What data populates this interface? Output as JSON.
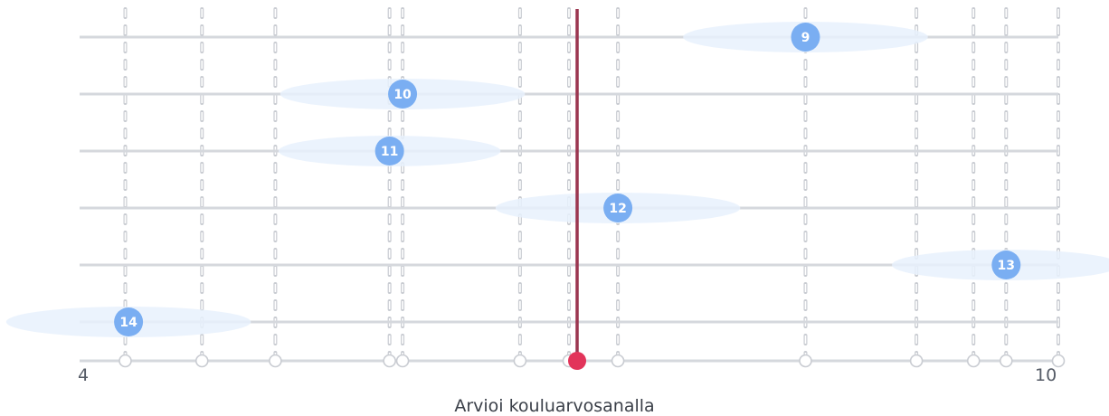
{
  "scale": {
    "min": 4,
    "max": 10,
    "min_label": "4",
    "max_label": "10",
    "question": "Arvioi kouluarvosanalla"
  },
  "colors": {
    "track": "#d5d8dd",
    "dashed_line": "#c9ccd2",
    "bubble": "#7aaef2",
    "ellipse": "#e8f1fd",
    "marker_line": "#9b3650",
    "marker_dot": "#e2345a",
    "tick_fill": "#ffffff",
    "tick_stroke": "#c9ccd2"
  },
  "current_value": 7.05,
  "tick_values": [
    4.28,
    4.75,
    5.2,
    5.9,
    5.98,
    6.7,
    7.0,
    7.3,
    8.45,
    9.13,
    9.48,
    9.68,
    10.0
  ],
  "participants": [
    {
      "label": "9",
      "value": 8.45,
      "spread": 0.75
    },
    {
      "label": "10",
      "value": 5.98,
      "spread": 0.75
    },
    {
      "label": "11",
      "value": 5.9,
      "spread": 0.68
    },
    {
      "label": "12",
      "value": 7.3,
      "spread": 0.75
    },
    {
      "label": "13",
      "value": 9.68,
      "spread": 0.7
    },
    {
      "label": "14",
      "value": 4.3,
      "spread": 0.75
    }
  ]
}
